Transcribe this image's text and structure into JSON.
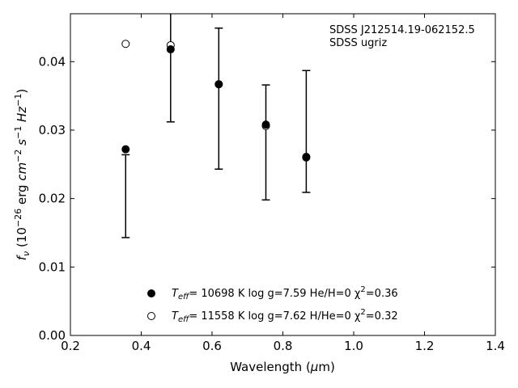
{
  "chart_data": {
    "type": "scatter",
    "xlabel": "Wavelength (μm)",
    "ylabel": "f_ν (10^-26 erg cm^-2 s^-1 Hz^-1)",
    "xlim": [
      0.2,
      1.4
    ],
    "ylim": [
      0.0,
      0.047
    ],
    "xticks": [
      "0.2",
      "0.4",
      "0.6",
      "0.8",
      "1.0",
      "1.2",
      "1.4"
    ],
    "yticks": [
      "0.00",
      "0.01",
      "0.02",
      "0.03",
      "0.04"
    ],
    "annotation": [
      "SDSS J212514.19-062152.5",
      "SDSS ugriz"
    ],
    "observed": {
      "x": [
        0.356,
        0.483,
        0.619,
        0.752,
        0.866
      ],
      "y_low": [
        0.0143,
        0.0312,
        0.0243,
        0.0198,
        0.0209
      ],
      "y_high": [
        0.0264,
        0.0475,
        0.0449,
        0.0366,
        0.0387
      ]
    },
    "series": [
      {
        "name": "T_eff= 10698 K  log g=7.59  He/H=0  χ²=0.36",
        "marker": "filled",
        "x": [
          0.356,
          0.483,
          0.619,
          0.752,
          0.866
        ],
        "y": [
          0.0272,
          0.0418,
          0.0367,
          0.0308,
          0.0261
        ]
      },
      {
        "name": "T_eff= 11558 K  log g=7.62  H/He=0  χ²=0.32",
        "marker": "open",
        "x": [
          0.356,
          0.483,
          0.619,
          0.752,
          0.866
        ],
        "y": [
          0.0426,
          0.0424,
          0.0367,
          0.0306,
          0.026
        ]
      }
    ],
    "legend_position": "bottom-center",
    "grid": false
  },
  "legend": {
    "items": [
      {
        "prefix": "T",
        "sub": "eff",
        "rest": "= 10698 K  log g=7.59  He/H=0  χ",
        "sup": "2",
        "tail": "=0.36"
      },
      {
        "prefix": "T",
        "sub": "eff",
        "rest": "= 11558 K  log g=7.62  H/He=0  χ",
        "sup": "2",
        "tail": "=0.32"
      }
    ]
  }
}
